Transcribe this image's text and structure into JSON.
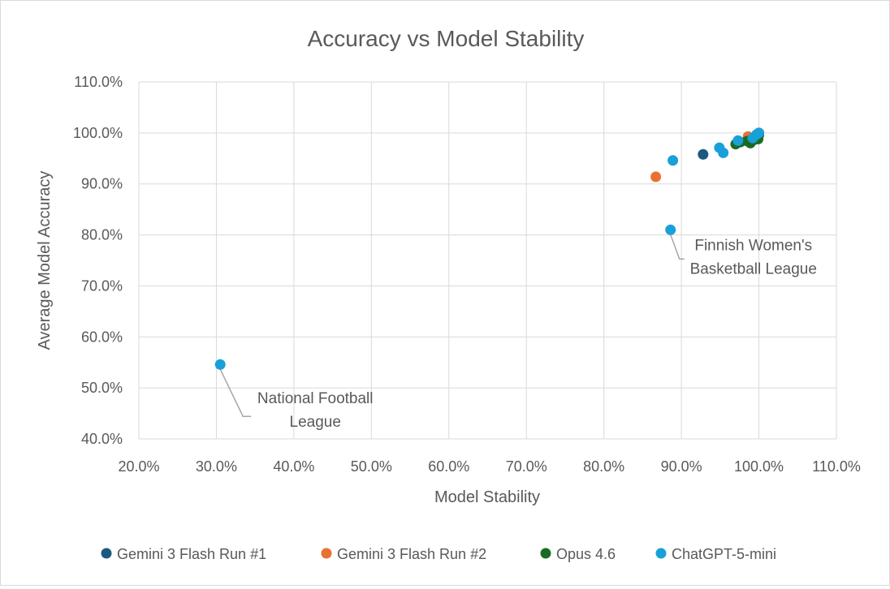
{
  "chart_data": {
    "type": "scatter",
    "title": "Accuracy vs Model Stability",
    "xlabel": "Model Stability",
    "ylabel": "Average Model Accuracy",
    "xlim": [
      20,
      110
    ],
    "ylim": [
      40,
      110
    ],
    "x_ticks": [
      20,
      30,
      40,
      50,
      60,
      70,
      80,
      90,
      100,
      110
    ],
    "y_ticks": [
      40,
      50,
      60,
      70,
      80,
      90,
      100,
      110
    ],
    "x_tick_labels": [
      "20.0%",
      "30.0%",
      "40.0%",
      "50.0%",
      "60.0%",
      "70.0%",
      "80.0%",
      "90.0%",
      "100.0%",
      "110.0%"
    ],
    "y_tick_labels": [
      "40.0%",
      "50.0%",
      "60.0%",
      "70.0%",
      "80.0%",
      "90.0%",
      "100.0%",
      "110.0%"
    ],
    "grid": true,
    "legend_position": "bottom",
    "series": [
      {
        "name": "Gemini 3 Flash Run #1",
        "color": "#1b5a7e",
        "points": [
          [
            92.8,
            95.8
          ],
          [
            98.6,
            98.4
          ],
          [
            99.3,
            98.9
          ],
          [
            99.7,
            99.5
          ],
          [
            100,
            100
          ]
        ]
      },
      {
        "name": "Gemini 3 Flash Run #2",
        "color": "#e97132",
        "points": [
          [
            86.7,
            91.4
          ],
          [
            98.6,
            99.3
          ],
          [
            99.5,
            99.0
          ],
          [
            99.9,
            99.8
          ]
        ]
      },
      {
        "name": "Opus 4.6",
        "color": "#196b24",
        "points": [
          [
            97.0,
            97.8
          ],
          [
            97.6,
            98.2
          ],
          [
            98.5,
            98.4
          ],
          [
            98.9,
            98.0
          ],
          [
            99.3,
            98.6
          ],
          [
            99.6,
            99.2
          ],
          [
            99.9,
            98.8
          ],
          [
            100,
            99.6
          ]
        ]
      },
      {
        "name": "ChatGPT-5-mini",
        "color": "#1aa0d9",
        "points": [
          [
            30.5,
            54.6
          ],
          [
            88.6,
            81.0
          ],
          [
            88.9,
            94.6
          ],
          [
            94.9,
            97.1
          ],
          [
            95.4,
            96.1
          ],
          [
            97.3,
            98.5
          ],
          [
            99.2,
            99.0
          ],
          [
            99.7,
            99.7
          ],
          [
            100,
            100
          ]
        ]
      }
    ],
    "annotations": [
      {
        "lines": [
          "Finnish Women's",
          "Basketball League"
        ],
        "point": [
          88.6,
          81.0
        ]
      },
      {
        "lines": [
          "National Football",
          "League"
        ],
        "point": [
          30.5,
          54.6
        ]
      }
    ]
  }
}
